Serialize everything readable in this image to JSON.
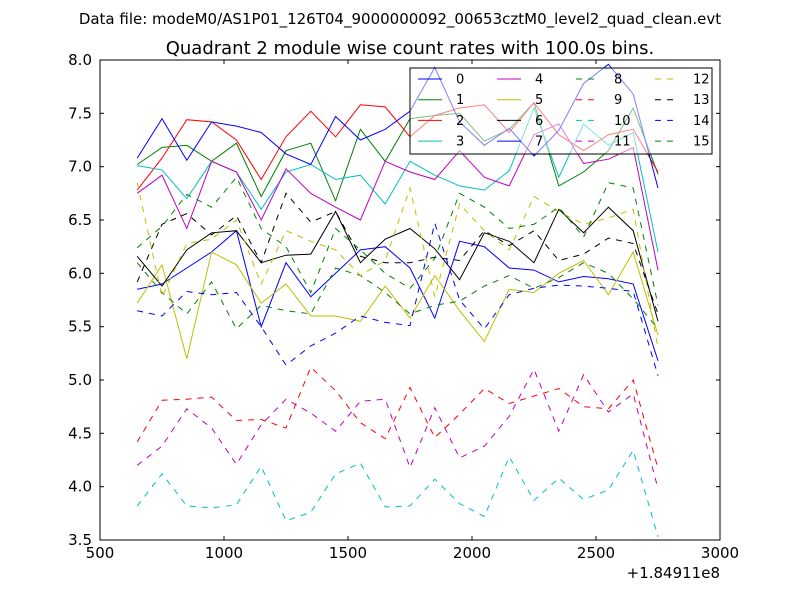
{
  "chart_data": {
    "type": "line",
    "suptitle": "Data file: modeM0/AS1P01_126T04_9000000092_00653cztM0_level2_quad_clean.evt",
    "title": "Quadrant 2 module wise count rates with 100.0s bins.",
    "xlabel": "",
    "ylabel": "",
    "x_offset_label": "+1.84911e8",
    "xlim": [
      500,
      3000
    ],
    "ylim": [
      3.5,
      8.0
    ],
    "xticks": [
      500,
      1000,
      1500,
      2000,
      2500,
      3000
    ],
    "yticks": [
      3.5,
      4.0,
      4.5,
      5.0,
      5.5,
      6.0,
      6.5,
      7.0,
      7.5,
      8.0
    ],
    "xtick_labels": [
      "500",
      "1000",
      "1500",
      "2000",
      "2500",
      "3000"
    ],
    "ytick_labels": [
      "3.5",
      "4.0",
      "4.5",
      "5.0",
      "5.5",
      "6.0",
      "6.5",
      "7.0",
      "7.5",
      "8.0"
    ],
    "legend_position": "top-right",
    "legend_columns": 4,
    "x": [
      650,
      750,
      850,
      950,
      1050,
      1150,
      1250,
      1350,
      1450,
      1550,
      1650,
      1750,
      1850,
      1950,
      2050,
      2150,
      2250,
      2350,
      2450,
      2550,
      2650,
      2750
    ],
    "series": [
      {
        "name": "0",
        "color": "#0000ff",
        "dash": false,
        "values": [
          5.85,
          5.9,
          6.05,
          6.2,
          6.4,
          5.5,
          6.1,
          5.78,
          6.0,
          6.22,
          6.25,
          6.05,
          5.58,
          6.3,
          6.25,
          6.05,
          6.03,
          5.92,
          5.97,
          5.95,
          5.9,
          5.18
        ]
      },
      {
        "name": "1",
        "color": "#008000",
        "dash": false,
        "values": [
          7.02,
          7.18,
          7.2,
          7.05,
          7.22,
          6.72,
          7.15,
          7.22,
          6.68,
          7.35,
          7.05,
          7.45,
          7.48,
          7.5,
          7.24,
          7.35,
          7.6,
          6.82,
          6.95,
          7.15,
          7.55,
          6.93
        ]
      },
      {
        "name": "2",
        "color": "#ff0000",
        "dash": false,
        "values": [
          6.78,
          7.08,
          7.44,
          7.42,
          7.25,
          6.88,
          7.28,
          7.52,
          7.28,
          7.58,
          7.56,
          7.28,
          7.48,
          7.55,
          7.58,
          7.32,
          7.6,
          7.3,
          7.15,
          7.3,
          7.35,
          6.95
        ]
      },
      {
        "name": "3",
        "color": "#00bfbf",
        "dash": false,
        "values": [
          7.01,
          6.97,
          6.7,
          7.05,
          6.95,
          6.6,
          6.95,
          7.02,
          6.88,
          6.92,
          6.65,
          7.05,
          6.92,
          6.82,
          6.78,
          6.96,
          7.55,
          6.9,
          7.4,
          7.2,
          7.32,
          6.2
        ]
      },
      {
        "name": "4",
        "color": "#bf00bf",
        "dash": false,
        "values": [
          6.75,
          6.92,
          6.42,
          7.05,
          6.95,
          6.5,
          6.98,
          6.75,
          6.62,
          6.5,
          7.05,
          6.95,
          6.88,
          7.15,
          6.9,
          6.82,
          7.3,
          7.4,
          7.03,
          7.07,
          7.18,
          6.03
        ]
      },
      {
        "name": "5",
        "color": "#bfbf00",
        "dash": false,
        "values": [
          5.72,
          6.08,
          5.2,
          6.2,
          6.08,
          5.72,
          5.9,
          5.6,
          5.6,
          5.55,
          5.88,
          5.58,
          5.98,
          5.65,
          5.36,
          5.85,
          5.82,
          6.0,
          6.12,
          5.8,
          6.2,
          5.42
        ]
      },
      {
        "name": "6",
        "color": "#000000",
        "dash": false,
        "values": [
          6.16,
          5.88,
          6.22,
          6.38,
          6.4,
          6.1,
          6.17,
          6.18,
          6.58,
          6.1,
          6.32,
          6.42,
          6.23,
          5.94,
          6.38,
          6.3,
          6.1,
          6.6,
          6.38,
          6.62,
          6.4,
          5.55
        ]
      },
      {
        "name": "7",
        "color": "#0000ff",
        "dash": false,
        "values": [
          7.08,
          7.45,
          7.06,
          7.42,
          7.38,
          7.32,
          7.12,
          7.02,
          7.47,
          7.25,
          7.35,
          7.52,
          7.93,
          7.42,
          7.2,
          7.36,
          7.1,
          7.34,
          7.78,
          7.96,
          7.68,
          6.8
        ]
      },
      {
        "name": "8",
        "color": "#008000",
        "dash": true,
        "values": [
          6.1,
          5.82,
          5.62,
          5.92,
          5.48,
          5.7,
          5.65,
          5.62,
          6.05,
          5.98,
          5.82,
          5.62,
          5.7,
          5.74,
          5.88,
          5.98,
          5.86,
          5.96,
          6.1,
          6.0,
          5.76,
          5.48
        ]
      },
      {
        "name": "9",
        "color": "#ff0000",
        "dash": true,
        "values": [
          4.42,
          4.81,
          4.82,
          4.84,
          4.62,
          4.63,
          4.55,
          5.12,
          4.9,
          4.6,
          4.45,
          4.93,
          4.46,
          4.68,
          4.92,
          4.78,
          4.85,
          4.92,
          4.75,
          4.73,
          5.0,
          4.17
        ]
      },
      {
        "name": "10",
        "color": "#00bfbf",
        "dash": true,
        "values": [
          3.82,
          4.12,
          3.82,
          3.8,
          3.83,
          4.19,
          3.68,
          3.76,
          4.12,
          4.22,
          3.81,
          3.82,
          4.07,
          3.84,
          3.72,
          4.28,
          3.87,
          4.08,
          3.88,
          3.97,
          4.34,
          3.53
        ]
      },
      {
        "name": "11",
        "color": "#bf00bf",
        "dash": true,
        "values": [
          4.2,
          4.38,
          4.73,
          4.55,
          4.21,
          4.58,
          4.82,
          4.69,
          4.52,
          4.8,
          4.82,
          4.18,
          4.74,
          4.27,
          4.38,
          4.66,
          5.1,
          4.52,
          5.05,
          4.7,
          4.87,
          3.98
        ]
      },
      {
        "name": "12",
        "color": "#bfbf00",
        "dash": true,
        "values": [
          6.85,
          5.78,
          6.28,
          6.32,
          6.5,
          5.9,
          6.4,
          6.3,
          6.22,
          5.98,
          6.12,
          6.8,
          5.78,
          6.65,
          6.4,
          6.22,
          6.72,
          6.58,
          6.46,
          6.52,
          6.6,
          5.3
        ]
      },
      {
        "name": "13",
        "color": "#000000",
        "dash": true,
        "values": [
          5.92,
          6.46,
          6.56,
          6.36,
          6.54,
          6.1,
          6.75,
          6.48,
          6.58,
          6.16,
          6.1,
          6.1,
          6.15,
          6.12,
          6.4,
          6.26,
          6.4,
          6.12,
          6.18,
          6.33,
          6.28,
          5.62
        ]
      },
      {
        "name": "14",
        "color": "#0000ff",
        "dash": true,
        "values": [
          5.65,
          5.6,
          5.83,
          5.8,
          5.82,
          5.5,
          5.14,
          5.32,
          5.44,
          5.6,
          5.54,
          5.51,
          6.47,
          5.75,
          5.48,
          5.8,
          5.86,
          5.89,
          5.88,
          5.86,
          5.83,
          5.04
        ]
      },
      {
        "name": "15",
        "color": "#008000",
        "dash": true,
        "values": [
          6.24,
          6.44,
          6.74,
          6.62,
          6.9,
          6.42,
          6.25,
          5.82,
          6.42,
          6.22,
          6.0,
          5.86,
          6.14,
          6.75,
          6.62,
          6.42,
          6.46,
          6.62,
          6.34,
          6.85,
          6.8,
          5.7
        ]
      }
    ]
  }
}
